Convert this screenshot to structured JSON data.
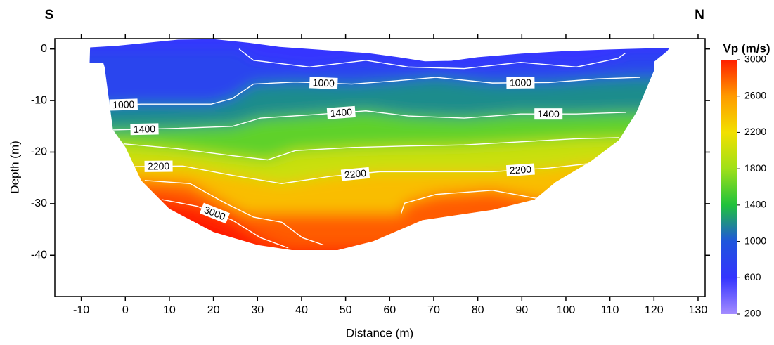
{
  "chart_data": {
    "type": "contour",
    "left_label": "S",
    "right_label": "N",
    "x_label": "Distance (m)",
    "y_label": "Depth (m)",
    "colorbar_title": "Vp (m/s)",
    "xlim": [
      -16,
      131.6
    ],
    "xticks": [
      -10,
      0,
      10,
      20,
      30,
      40,
      50,
      60,
      70,
      80,
      90,
      100,
      110,
      120,
      130
    ],
    "ylim": [
      -48,
      2
    ],
    "yticks": [
      0,
      -10,
      -20,
      -30,
      -40
    ],
    "zlim": [
      200,
      3000
    ],
    "zticks": [
      3000,
      2600,
      2200,
      1800,
      1400,
      1000,
      600,
      200
    ],
    "colormap": [
      "#a48cff",
      "#3434ff",
      "#1f55dc",
      "#1fc23c",
      "#9fe018",
      "#f2e000",
      "#ff9a00",
      "#ff1e00"
    ],
    "contour_color": "#ffffff",
    "outline": {
      "x": [
        -8,
        -2,
        5,
        12,
        20,
        28,
        35,
        45,
        55,
        62,
        68,
        74,
        80,
        90,
        100,
        110,
        118,
        123.5,
        123,
        120,
        120,
        116,
        112,
        105.6,
        97.7,
        92.9,
        83.3,
        67.4,
        56.2,
        48.2,
        37.8,
        30,
        20,
        10,
        3.6,
        0,
        -2.8,
        -4.7,
        -5,
        -8.1
      ],
      "y": [
        0.3,
        0.6,
        1.2,
        1.8,
        1.9,
        1.2,
        0.4,
        -0.2,
        -0.8,
        -1.6,
        -2.4,
        -2.3,
        -1.6,
        -0.9,
        -0.4,
        -0.1,
        0.1,
        0.2,
        -0.4,
        -2.5,
        -4.2,
        -12.3,
        -17.7,
        -21.8,
        -25.8,
        -29.2,
        -31.2,
        -33.2,
        -37.3,
        -39,
        -39,
        -38,
        -35.5,
        -31,
        -25.5,
        -19,
        -15.7,
        -3.5,
        -2.7,
        -2.7
      ]
    },
    "contours": [
      {
        "level": 600,
        "labeled": false,
        "x": [
          25.8,
          29.1,
          41.8,
          54.6,
          64.2,
          76.9,
          89.7,
          102.4,
          111.9,
          113.5
        ],
        "y": [
          0,
          -2.2,
          -3.5,
          -2.2,
          -3.5,
          -3.8,
          -2.6,
          -3.5,
          -1.8,
          -0.8
        ]
      },
      {
        "level": 1000,
        "labeled": true,
        "x": [
          -4.4,
          3.6,
          19.5,
          24.3,
          29.1,
          38.6,
          51.4,
          61.0,
          70.5,
          83.3,
          96.1,
          107.2,
          116.8
        ],
        "y": [
          -10.9,
          -10.7,
          -10.7,
          -9.6,
          -6.8,
          -6.4,
          -6.8,
          -6.2,
          -5.5,
          -6.6,
          -6.5,
          -5.8,
          -5.5
        ]
      },
      {
        "level": 1400,
        "labeled": true,
        "x": [
          -2.8,
          11.5,
          24.3,
          30.7,
          43.4,
          54.6,
          64.2,
          76.9,
          89.7,
          102.4,
          113.6
        ],
        "y": [
          -15.7,
          -15.4,
          -15.0,
          -13.4,
          -12.7,
          -12.0,
          -13.0,
          -13.4,
          -12.6,
          -12.6,
          -12.3
        ]
      },
      {
        "level": 1800,
        "labeled": false,
        "x": [
          -0.4,
          11.5,
          24.3,
          32.3,
          38.6,
          51.4,
          64.2,
          76.9,
          89.7,
          102.4,
          112.0
        ],
        "y": [
          -18.4,
          -19.3,
          -20.7,
          -21.5,
          -19.7,
          -19.1,
          -18.8,
          -18.6,
          -18.0,
          -17.4,
          -17.2
        ]
      },
      {
        "level": 2200,
        "labeled": true,
        "x": [
          2.0,
          13.1,
          24.3,
          35.5,
          46.6,
          57.8,
          70.5,
          83.3,
          96.1,
          105.6
        ],
        "y": [
          -22.8,
          -22.7,
          -24.5,
          -26.1,
          -24.7,
          -23.8,
          -23.8,
          -23.8,
          -23.1,
          -22.2
        ]
      },
      {
        "level": 2600,
        "labeled": false,
        "x": [
          4.4,
          14.7,
          22.7,
          29.1,
          35.5,
          40.2,
          45.0
        ],
        "y": [
          -25.5,
          -26.1,
          -29.9,
          -32.6,
          -33.6,
          -36.6,
          -38.0
        ]
      },
      {
        "level": 2600,
        "labeled": false,
        "x": [
          62.6,
          63.4,
          70.5,
          83.3,
          92.9,
          96.1
        ],
        "y": [
          -31.9,
          -29.9,
          -28.2,
          -27.4,
          -28.9,
          -29.2
        ]
      },
      {
        "level": 3000,
        "labeled": true,
        "x": [
          8.3,
          16.3,
          24.3,
          30.7,
          37.0
        ],
        "y": [
          -29.2,
          -30.5,
          -33.2,
          -36.6,
          -38.6
        ]
      }
    ]
  }
}
